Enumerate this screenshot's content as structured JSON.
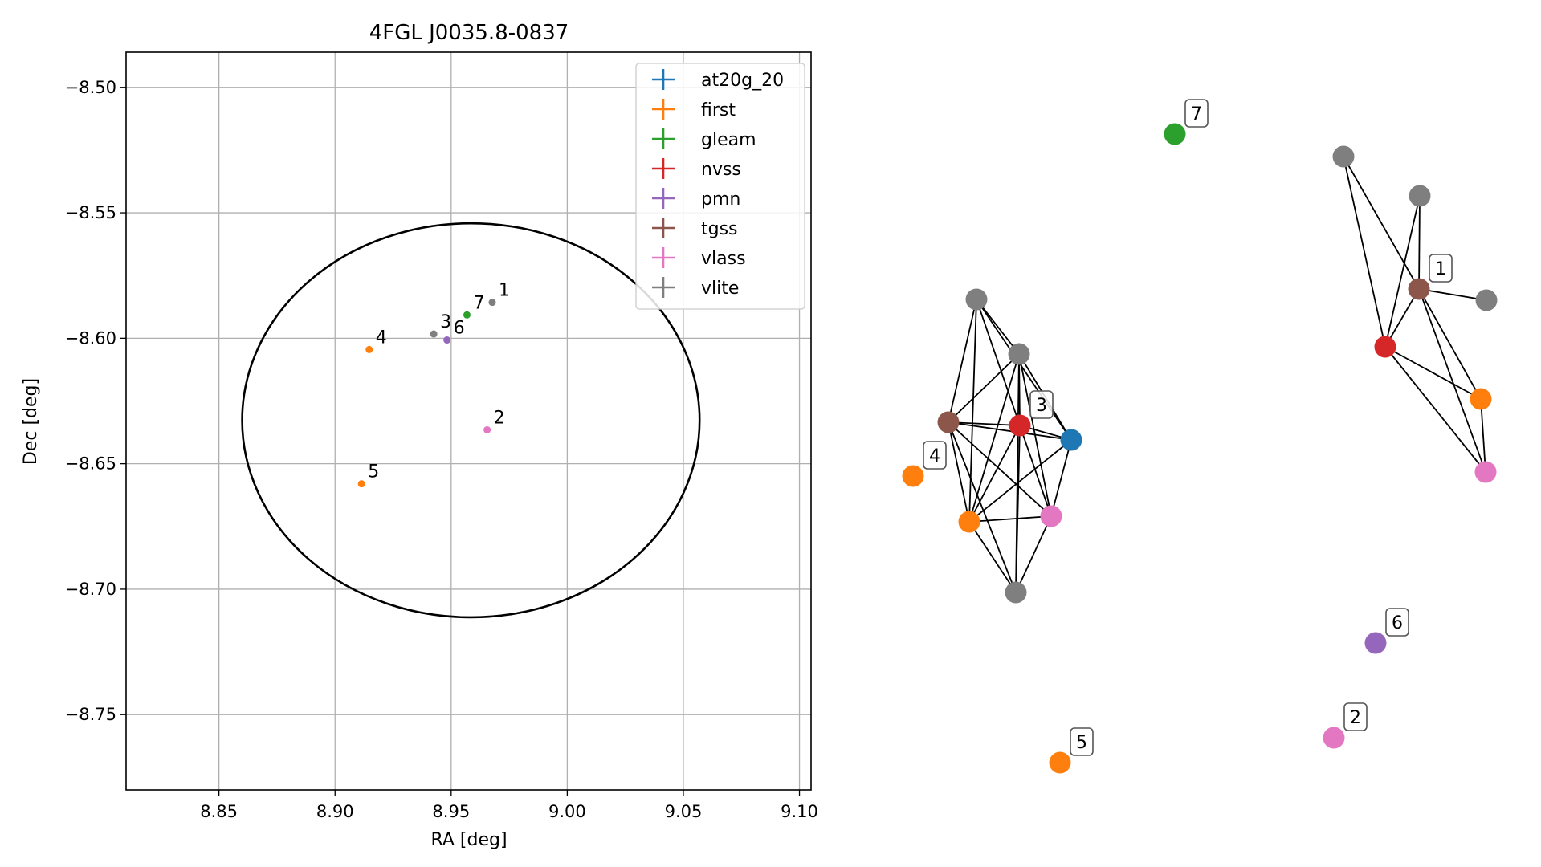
{
  "chart_data": [
    {
      "type": "scatter",
      "title": "4FGL J0035.8-0837",
      "xlabel": "RA [deg]",
      "ylabel": "Dec [deg]",
      "xlim": [
        8.81,
        9.105
      ],
      "ylim": [
        -8.78,
        -8.486
      ],
      "xticks": [
        8.85,
        8.9,
        8.95,
        9.0,
        9.05,
        9.1
      ],
      "xtick_labels": [
        "8.85",
        "8.90",
        "8.95",
        "9.00",
        "9.05",
        "9.10"
      ],
      "yticks": [
        -8.5,
        -8.55,
        -8.6,
        -8.65,
        -8.7,
        -8.75
      ],
      "ytick_labels": [
        "−8.50",
        "−8.55",
        "−8.60",
        "−8.65",
        "−8.70",
        "−8.75"
      ],
      "grid": true,
      "legend_position": "top-right",
      "legend": [
        {
          "name": "at20g_20",
          "color": "#1f77b4"
        },
        {
          "name": "first",
          "color": "#ff7f0e"
        },
        {
          "name": "gleam",
          "color": "#2ca02c"
        },
        {
          "name": "nvss",
          "color": "#d62728"
        },
        {
          "name": "pmn",
          "color": "#9467bd"
        },
        {
          "name": "tgss",
          "color": "#8c564b"
        },
        {
          "name": "vlass",
          "color": "#e377c2"
        },
        {
          "name": "vlite",
          "color": "#7f7f7f"
        }
      ],
      "ellipse": {
        "center_ra": 8.9585,
        "center_dec": -8.6327,
        "semi_ra": 0.0985,
        "semi_dec": 0.0785,
        "color": "#000000"
      },
      "points": [
        {
          "label": "1",
          "ra": 8.9677,
          "dec": -8.5857,
          "catalog": "vlite",
          "color": "#7f7f7f"
        },
        {
          "label": "2",
          "ra": 8.9655,
          "dec": -8.6365,
          "catalog": "vlass",
          "color": "#e377c2"
        },
        {
          "label": "3",
          "ra": 8.9425,
          "dec": -8.5983,
          "catalog": "vlite",
          "color": "#7f7f7f"
        },
        {
          "label": "4",
          "ra": 8.9147,
          "dec": -8.6045,
          "catalog": "first",
          "color": "#ff7f0e"
        },
        {
          "label": "5",
          "ra": 8.9114,
          "dec": -8.658,
          "catalog": "first",
          "color": "#ff7f0e"
        },
        {
          "label": "6",
          "ra": 8.9482,
          "dec": -8.6007,
          "catalog": "pmn",
          "color": "#9467bd"
        },
        {
          "label": "7",
          "ra": 8.9568,
          "dec": -8.5907,
          "catalog": "gleam",
          "color": "#2ca02c"
        }
      ]
    },
    {
      "type": "network",
      "nodes": [
        {
          "id": "g1",
          "color": "#7f7f7f"
        },
        {
          "id": "g2",
          "color": "#7f7f7f"
        },
        {
          "id": "g3",
          "color": "#7f7f7f"
        },
        {
          "id": "tg",
          "color": "#8c564b"
        },
        {
          "id": "nv",
          "color": "#d62728"
        },
        {
          "id": "at",
          "color": "#1f77b4"
        },
        {
          "id": "fi",
          "color": "#ff7f0e"
        },
        {
          "id": "vl",
          "color": "#e377c2"
        },
        {
          "id": "c1_tg",
          "color": "#8c564b"
        },
        {
          "id": "c1_g1",
          "color": "#7f7f7f"
        },
        {
          "id": "c1_g2",
          "color": "#7f7f7f"
        },
        {
          "id": "c1_g3",
          "color": "#7f7f7f"
        },
        {
          "id": "c1_nv",
          "color": "#d62728"
        },
        {
          "id": "c1_fi",
          "color": "#ff7f0e"
        },
        {
          "id": "c1_vl",
          "color": "#e377c2"
        },
        {
          "id": "n4",
          "color": "#ff7f0e"
        },
        {
          "id": "n7",
          "color": "#2ca02c"
        },
        {
          "id": "n5",
          "color": "#ff7f0e"
        },
        {
          "id": "n6",
          "color": "#9467bd"
        },
        {
          "id": "n2",
          "color": "#e377c2"
        }
      ],
      "node_labels": [
        {
          "node": "nv",
          "text": "3"
        },
        {
          "node": "c1_tg",
          "text": "1"
        },
        {
          "node": "n4",
          "text": "4"
        },
        {
          "node": "n7",
          "text": "7"
        },
        {
          "node": "n5",
          "text": "5"
        },
        {
          "node": "n6",
          "text": "6"
        },
        {
          "node": "n2",
          "text": "2"
        }
      ],
      "edges": [
        [
          "g1",
          "tg"
        ],
        [
          "g1",
          "g2"
        ],
        [
          "g1",
          "nv"
        ],
        [
          "g1",
          "at"
        ],
        [
          "g1",
          "fi"
        ],
        [
          "g2",
          "tg"
        ],
        [
          "g2",
          "nv"
        ],
        [
          "g2",
          "at"
        ],
        [
          "g2",
          "fi"
        ],
        [
          "g2",
          "vl"
        ],
        [
          "g2",
          "g3"
        ],
        [
          "tg",
          "nv"
        ],
        [
          "tg",
          "at"
        ],
        [
          "tg",
          "fi"
        ],
        [
          "tg",
          "vl"
        ],
        [
          "tg",
          "g3"
        ],
        [
          "nv",
          "at"
        ],
        [
          "nv",
          "fi"
        ],
        [
          "nv",
          "vl"
        ],
        [
          "nv",
          "g3"
        ],
        [
          "at",
          "fi"
        ],
        [
          "at",
          "vl"
        ],
        [
          "fi",
          "vl"
        ],
        [
          "fi",
          "g3"
        ],
        [
          "vl",
          "g3"
        ],
        [
          "c1_g1",
          "c1_nv"
        ],
        [
          "c1_g1",
          "c1_tg"
        ],
        [
          "c1_g2",
          "c1_nv"
        ],
        [
          "c1_g2",
          "c1_tg"
        ],
        [
          "c1_tg",
          "c1_g3"
        ],
        [
          "c1_tg",
          "c1_nv"
        ],
        [
          "c1_tg",
          "c1_fi"
        ],
        [
          "c1_tg",
          "c1_vl"
        ],
        [
          "c1_nv",
          "c1_fi"
        ],
        [
          "c1_nv",
          "c1_vl"
        ],
        [
          "c1_fi",
          "c1_vl"
        ]
      ]
    }
  ]
}
